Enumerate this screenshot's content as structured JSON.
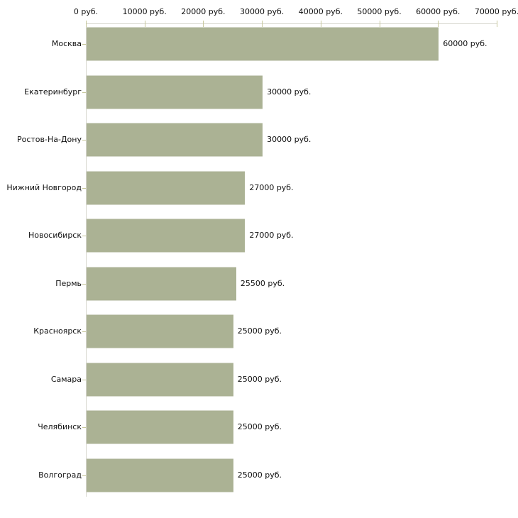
{
  "chart_data": {
    "type": "bar",
    "orientation": "horizontal",
    "title": "",
    "xlabel": "",
    "ylabel": "",
    "unit_suffix": " руб.",
    "categories": [
      "Москва",
      "Екатеринбург",
      "Ростов-На-Дону",
      "Нижний Новгород",
      "Новосибирск",
      "Пермь",
      "Красноярск",
      "Самара",
      "Челябинск",
      "Волгоград"
    ],
    "values": [
      60000,
      30000,
      30000,
      27000,
      27000,
      25500,
      25000,
      25000,
      25000,
      25000
    ],
    "value_labels": [
      "60000 руб.",
      "30000 руб.",
      "30000 руб.",
      "27000 руб.",
      "27000 руб.",
      "25500 руб.",
      "25000 руб.",
      "25000 руб.",
      "25000 руб.",
      "25000 руб."
    ],
    "x_tick_values": [
      0,
      10000,
      20000,
      30000,
      40000,
      50000,
      60000,
      70000
    ],
    "x_tick_labels": [
      "0 руб.",
      "10000 руб.",
      "20000 руб.",
      "30000 руб.",
      "40000 руб.",
      "50000 руб.",
      "60000 руб.",
      "70000 руб."
    ],
    "xlim": [
      0,
      70000
    ],
    "grid": "off",
    "legend": "none",
    "axis_position": "top",
    "colors": {
      "bar": "#abb294",
      "axis": "#d6d6ce",
      "tick": "#c6c69a",
      "text": "#111111",
      "background": "#ffffff"
    }
  }
}
